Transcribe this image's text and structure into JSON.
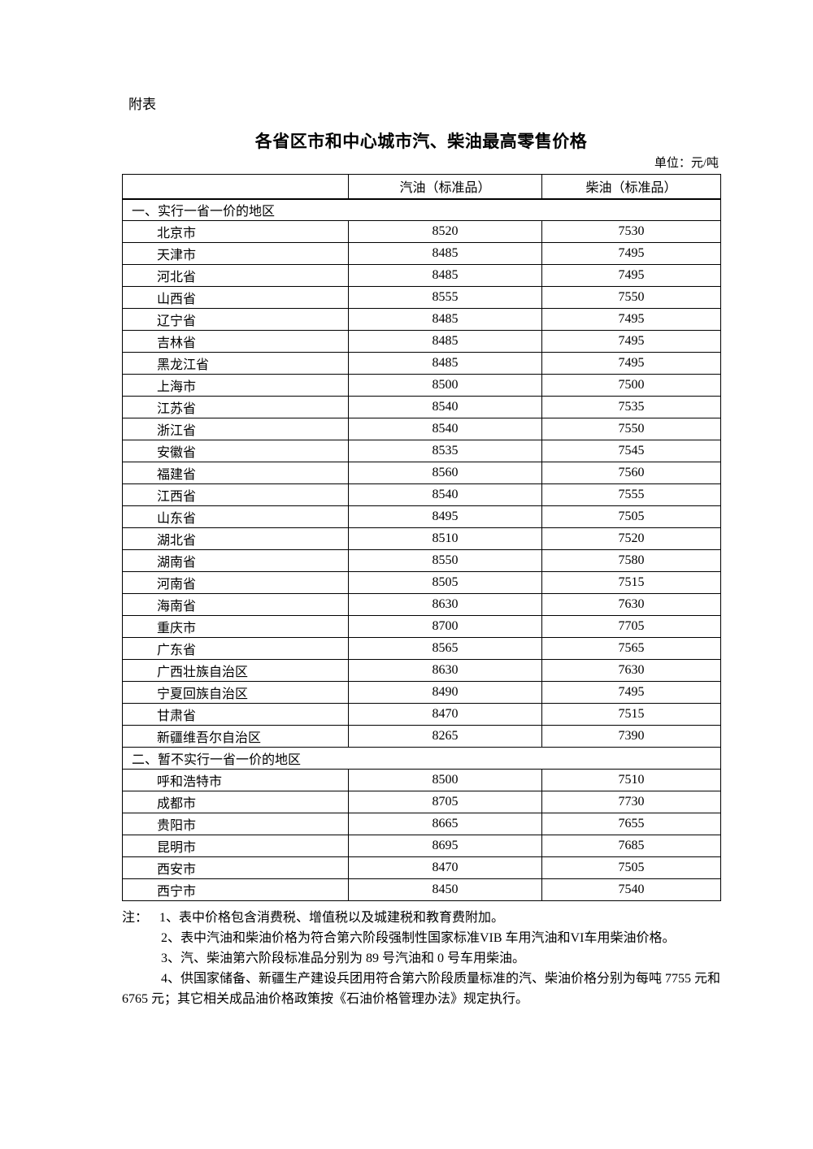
{
  "page": {
    "label": "附表",
    "title": "各省区市和中心城市汽、柴油最高零售价格",
    "unit": "单位：元/吨",
    "ink_color": "#000000",
    "paper_color": "#ffffff"
  },
  "table": {
    "columns": [
      "",
      "汽油（标准品）",
      "柴油（标准品）"
    ],
    "sections": [
      {
        "header": "一、实行一省一价的地区",
        "rows": [
          {
            "region": "北京市",
            "gasoline": "8520",
            "diesel": "7530"
          },
          {
            "region": "天津市",
            "gasoline": "8485",
            "diesel": "7495"
          },
          {
            "region": "河北省",
            "gasoline": "8485",
            "diesel": "7495"
          },
          {
            "region": "山西省",
            "gasoline": "8555",
            "diesel": "7550"
          },
          {
            "region": "辽宁省",
            "gasoline": "8485",
            "diesel": "7495"
          },
          {
            "region": "吉林省",
            "gasoline": "8485",
            "diesel": "7495"
          },
          {
            "region": "黑龙江省",
            "gasoline": "8485",
            "diesel": "7495"
          },
          {
            "region": "上海市",
            "gasoline": "8500",
            "diesel": "7500"
          },
          {
            "region": "江苏省",
            "gasoline": "8540",
            "diesel": "7535"
          },
          {
            "region": "浙江省",
            "gasoline": "8540",
            "diesel": "7550"
          },
          {
            "region": "安徽省",
            "gasoline": "8535",
            "diesel": "7545"
          },
          {
            "region": "福建省",
            "gasoline": "8560",
            "diesel": "7560"
          },
          {
            "region": "江西省",
            "gasoline": "8540",
            "diesel": "7555"
          },
          {
            "region": "山东省",
            "gasoline": "8495",
            "diesel": "7505"
          },
          {
            "region": "湖北省",
            "gasoline": "8510",
            "diesel": "7520"
          },
          {
            "region": "湖南省",
            "gasoline": "8550",
            "diesel": "7580"
          },
          {
            "region": "河南省",
            "gasoline": "8505",
            "diesel": "7515"
          },
          {
            "region": "海南省",
            "gasoline": "8630",
            "diesel": "7630"
          },
          {
            "region": "重庆市",
            "gasoline": "8700",
            "diesel": "7705"
          },
          {
            "region": "广东省",
            "gasoline": "8565",
            "diesel": "7565"
          },
          {
            "region": "广西壮族自治区",
            "gasoline": "8630",
            "diesel": "7630"
          },
          {
            "region": "宁夏回族自治区",
            "gasoline": "8490",
            "diesel": "7495"
          },
          {
            "region": "甘肃省",
            "gasoline": "8470",
            "diesel": "7515"
          },
          {
            "region": "新疆维吾尔自治区",
            "gasoline": "8265",
            "diesel": "7390"
          }
        ]
      },
      {
        "header": "二、暂不实行一省一价的地区",
        "rows": [
          {
            "region": "呼和浩特市",
            "gasoline": "8500",
            "diesel": "7510"
          },
          {
            "region": "成都市",
            "gasoline": "8705",
            "diesel": "7730"
          },
          {
            "region": "贵阳市",
            "gasoline": "8665",
            "diesel": "7655"
          },
          {
            "region": "昆明市",
            "gasoline": "8695",
            "diesel": "7685"
          },
          {
            "region": "西安市",
            "gasoline": "8470",
            "diesel": "7505"
          },
          {
            "region": "西宁市",
            "gasoline": "8450",
            "diesel": "7540"
          }
        ]
      }
    ]
  },
  "notes": {
    "prefix": "注：",
    "items": [
      "1、表中价格包含消费税、增值税以及城建税和教育费附加。",
      "2、表中汽油和柴油价格为符合第六阶段强制性国家标准VIB 车用汽油和VI车用柴油价格。",
      "3、汽、柴油第六阶段标准品分别为 89 号汽油和 0 号车用柴油。",
      "4、供国家储备、新疆生产建设兵团用符合第六阶段质量标准的汽、柴油价格分别为每吨 7755 元和 6765 元；其它相关成品油价格政策按《石油价格管理办法》规定执行。"
    ]
  }
}
